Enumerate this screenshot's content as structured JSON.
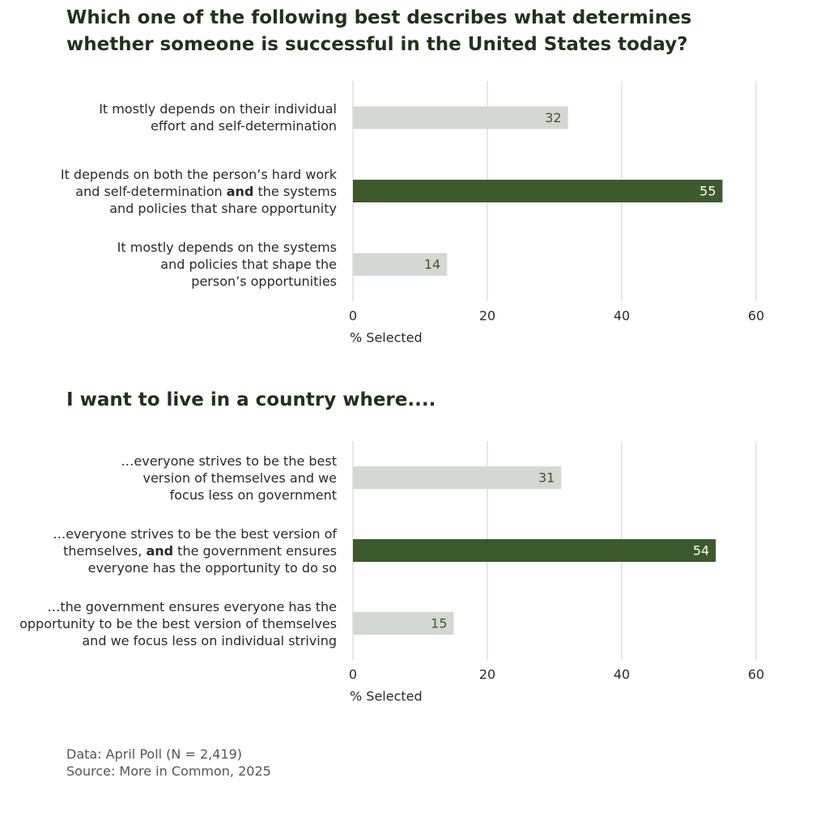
{
  "chart_data": [
    {
      "type": "bar",
      "orientation": "horizontal",
      "title": "Which one of the following best describes what determines whether someone is successful in the United States today?",
      "categories": [
        [
          [
            "It mostly depends on their individual"
          ],
          [
            "effort and self-determination"
          ]
        ],
        [
          [
            "It depends on both the person’s hard work"
          ],
          [
            "and self-determination ",
            {
              "text": "and",
              "bold": true
            },
            " the systems"
          ],
          [
            "and policies that share opportunity"
          ]
        ],
        [
          [
            "It mostly depends on the systems"
          ],
          [
            "and policies that shape the"
          ],
          [
            "person’s opportunities"
          ]
        ]
      ],
      "values": [
        32,
        55,
        14
      ],
      "colors": [
        "#d3d8d1",
        "#3d5a2c",
        "#d3d8d1"
      ],
      "label_colors": [
        "#3d5a2c",
        "#ffffff",
        "#3d5a2c"
      ],
      "xlabel": "% Selected",
      "xlim": [
        0,
        60
      ],
      "xticks": [
        0,
        20,
        40,
        60
      ],
      "grid": true
    },
    {
      "type": "bar",
      "orientation": "horizontal",
      "title": "I want to live in a country where....",
      "categories": [
        [
          [
            "…everyone strives to be the best"
          ],
          [
            "version of themselves and we"
          ],
          [
            "focus less on government"
          ]
        ],
        [
          [
            "…everyone strives to be the best version of"
          ],
          [
            "themselves, ",
            {
              "text": "and",
              "bold": true
            },
            " the government ensures"
          ],
          [
            "everyone has the opportunity to do so"
          ]
        ],
        [
          [
            "…the government ensures everyone has the"
          ],
          [
            "opportunity to be the best version of themselves"
          ],
          [
            "and we focus less on individual striving"
          ]
        ]
      ],
      "values": [
        31,
        54,
        15
      ],
      "colors": [
        "#d3d8d1",
        "#3d5a2c",
        "#d3d8d1"
      ],
      "label_colors": [
        "#3d5a2c",
        "#ffffff",
        "#3d5a2c"
      ],
      "xlabel": "% Selected",
      "xlim": [
        0,
        60
      ],
      "xticks": [
        0,
        20,
        40,
        60
      ],
      "grid": true
    }
  ],
  "notes": [
    "Data: April Poll (N = 2,419)",
    "Source: More in Common, 2025"
  ]
}
